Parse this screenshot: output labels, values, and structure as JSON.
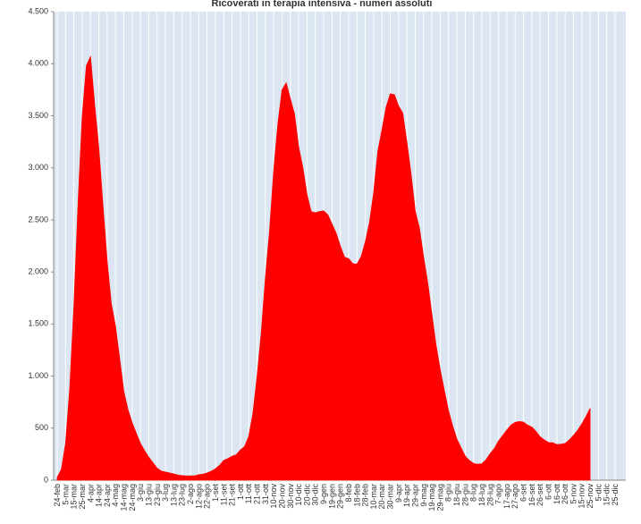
{
  "chart_data": {
    "type": "area",
    "title": "Ricoverati in terapia intensiva - numeri assoluti",
    "categories": [
      "24-feb",
      null,
      "5-mar",
      null,
      "15-mar",
      null,
      "25-mar",
      null,
      "4-apr",
      null,
      "14-apr",
      null,
      "24-apr",
      null,
      "4-mag",
      null,
      "14-mag",
      null,
      "24-mag",
      null,
      "3-giu",
      null,
      "13-giu",
      null,
      "23-giu",
      null,
      "3-lug",
      null,
      "13-lug",
      null,
      "23-lug",
      null,
      "2-ago",
      null,
      "12-ago",
      null,
      "22-ago",
      null,
      "1-set",
      null,
      "11-set",
      null,
      "21-set",
      null,
      "1-ott",
      null,
      "11-ott",
      null,
      "21-ott",
      null,
      "31-ott",
      null,
      "10-nov",
      null,
      "20-nov",
      null,
      "30-nov",
      null,
      "10-dic",
      null,
      "20-dic",
      null,
      "30-dic",
      null,
      "9-gen",
      null,
      "19-gen",
      null,
      "29-gen",
      null,
      "8-feb",
      null,
      "18-feb",
      null,
      "28-feb",
      null,
      "10-mar",
      null,
      "20-mar",
      null,
      "30-mar",
      null,
      "9-apr",
      null,
      "19-apr",
      null,
      "29-apr",
      null,
      "9-mag",
      null,
      "19-mag",
      null,
      "29-mag",
      null,
      "8-giu",
      null,
      "18-giu",
      null,
      "28-giu",
      null,
      "8-lug",
      null,
      "18-lug",
      null,
      "28-lug",
      null,
      "7-ago",
      null,
      "17-ago",
      null,
      "27-ago",
      null,
      "6-set",
      null,
      "16-set",
      null,
      "26-set",
      null,
      "6-ott",
      null,
      "16-ott",
      null,
      "26-ott",
      null,
      "5-nov",
      null,
      "15-nov",
      null,
      "25-nov",
      null,
      "5-dic",
      null,
      "15-dic",
      null,
      "25-dic"
    ],
    "values": [
      27,
      105,
      351,
      877,
      1672,
      2655,
      3489,
      3981,
      4068,
      3605,
      3186,
      2635,
      2102,
      1694,
      1479,
      1168,
      855,
      676,
      553,
      450,
      353,
      283,
      220,
      168,
      115,
      87,
      78,
      70,
      60,
      49,
      44,
      41,
      42,
      42,
      52,
      58,
      69,
      86,
      109,
      143,
      190,
      207,
      230,
      244,
      291,
      323,
      420,
      638,
      992,
      1411,
      1939,
      2391,
      2971,
      3422,
      3748,
      3816,
      3663,
      3517,
      3199,
      3003,
      2743,
      2580,
      2569,
      2579,
      2587,
      2549,
      2461,
      2372,
      2250,
      2142,
      2128,
      2079,
      2074,
      2146,
      2288,
      2475,
      2756,
      3157,
      3364,
      3583,
      3710,
      3703,
      3593,
      3526,
      3244,
      2939,
      2583,
      2423,
      2144,
      1898,
      1593,
      1296,
      1061,
      860,
      666,
      520,
      395,
      312,
      231,
      190,
      160,
      153,
      158,
      196,
      256,
      304,
      376,
      428,
      481,
      530,
      555,
      563,
      558,
      528,
      510,
      469,
      417,
      387,
      362,
      359,
      342,
      345,
      353,
      387,
      429,
      479,
      540,
      610,
      690,
      null,
      null,
      null,
      null,
      null,
      null
    ],
    "color": "#ff0000",
    "ylim": [
      0,
      4500
    ],
    "yticks": [
      0,
      500,
      {
        "value": 1000,
        "label": "1.000"
      },
      {
        "value": 1500,
        "label": "1.500"
      },
      {
        "value": 2000,
        "label": "2.000"
      },
      {
        "value": 2500,
        "label": "2.500"
      },
      {
        "value": 3000,
        "label": "3.000"
      },
      {
        "value": 3500,
        "label": "3.500"
      },
      {
        "value": 4000,
        "label": "4.000"
      },
      {
        "value": 4500,
        "label": "4.500"
      }
    ]
  }
}
